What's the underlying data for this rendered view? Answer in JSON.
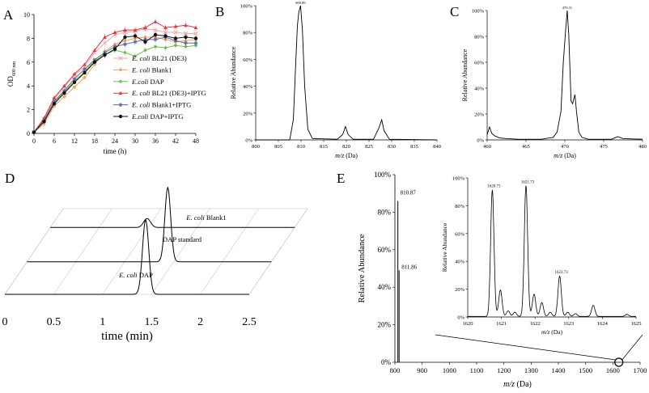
{
  "panels": {
    "A": {
      "letter": "A",
      "chart_data": {
        "type": "line",
        "xlabel": "time (h)",
        "ylabel_main": "OD",
        "ylabel_sub": "600 nm",
        "xlim": [
          0,
          48
        ],
        "ylim": [
          0,
          10
        ],
        "x_ticks": [
          "0",
          "6",
          "12",
          "18",
          "24",
          "30",
          "36",
          "42",
          "48"
        ],
        "y_ticks": [
          "0",
          "2",
          "4",
          "6",
          "8",
          "10"
        ],
        "x": [
          0,
          3,
          6,
          9,
          12,
          15,
          18,
          21,
          24,
          27,
          30,
          33,
          36,
          39,
          42,
          45,
          48
        ],
        "series": [
          {
            "name": "E. coli BL21 (DE3)",
            "italic": "E. coli",
            "rest": " BL21 (DE3)",
            "color": "#f2a7a7",
            "marker": "x",
            "values": [
              0.1,
              1.2,
              2.9,
              3.9,
              4.9,
              5.6,
              6.8,
              7.6,
              8.3,
              8.5,
              8.6,
              8.8,
              8.7,
              8.5,
              8.5,
              8.4,
              8.4
            ]
          },
          {
            "name": "E. coli Blank1",
            "italic": "E. coli",
            "rest": " Blank1",
            "color": "#f0a35a",
            "marker": "diamond",
            "values": [
              0.1,
              0.8,
              2.3,
              3.1,
              3.9,
              4.7,
              5.8,
              6.9,
              7.5,
              7.8,
              8.0,
              8.1,
              8.1,
              7.9,
              7.7,
              7.8,
              7.9
            ]
          },
          {
            "name": "E.coli DAP",
            "italic": "E.coli",
            "rest": " DAP",
            "color": "#6cbf4a",
            "marker": "circle",
            "values": [
              0.1,
              1.0,
              2.6,
              3.5,
              4.4,
              5.2,
              6.1,
              6.6,
              7.0,
              6.8,
              6.5,
              7.0,
              7.3,
              7.2,
              7.4,
              7.3,
              7.4
            ]
          },
          {
            "name": "E. coli BL21 (DE3)+IPTG",
            "italic": "E. coli",
            "rest": " BL21 (DE3)+IPTG",
            "color": "#e0393e",
            "marker": "triangle",
            "values": [
              0.1,
              1.3,
              3.0,
              4.0,
              5.0,
              5.8,
              7.0,
              8.1,
              8.5,
              8.7,
              8.7,
              8.9,
              9.4,
              8.9,
              9.0,
              9.1,
              8.9
            ]
          },
          {
            "name": "E. coli Blank1+IPTG",
            "italic": "E. coli",
            "rest": " Blank1+IPTG",
            "color": "#5c6aa8",
            "marker": "star",
            "values": [
              0.1,
              1.1,
              2.7,
              3.6,
              4.6,
              5.4,
              6.2,
              6.8,
              7.3,
              7.5,
              7.7,
              7.9,
              7.9,
              8.1,
              7.8,
              7.6,
              7.6
            ]
          },
          {
            "name": "E.coli DAP+IPTG",
            "italic": "E.coli",
            "rest": " DAP+IPTG",
            "color": "#111111",
            "marker": "dot",
            "values": [
              0.1,
              1.0,
              2.5,
              3.4,
              4.3,
              5.1,
              6.0,
              6.6,
              7.1,
              8.1,
              8.2,
              7.7,
              8.3,
              8.2,
              8.0,
              8.1,
              8.0
            ]
          }
        ]
      }
    },
    "B": {
      "letter": "B",
      "chart_data": {
        "type": "line",
        "xlabel_italic": "m/z",
        "xlabel_rest": " (Da)",
        "ylabel": "Relative Abundance",
        "xlim": [
          800,
          840
        ],
        "ylim": [
          0,
          100
        ],
        "x_ticks": [
          "800",
          "805",
          "810",
          "815",
          "820",
          "825",
          "830",
          "835",
          "840"
        ],
        "y_ticks": [
          "0%",
          "20%",
          "40%",
          "60%",
          "80%",
          "100%"
        ],
        "peak_label": "809.89",
        "x": [
          800,
          807.5,
          808.3,
          808.8,
          809.2,
          809.5,
          809.9,
          810.3,
          810.8,
          811.5,
          812.5,
          818,
          819.2,
          819.8,
          820.4,
          821.5,
          826,
          827.2,
          827.8,
          828.3,
          829.5,
          840
        ],
        "values": [
          0,
          0,
          15,
          55,
          85,
          95,
          100,
          82,
          40,
          8,
          1,
          0.5,
          4,
          10,
          4,
          0.5,
          0.5,
          9,
          15,
          7,
          0.5,
          0
        ]
      }
    },
    "C": {
      "letter": "C",
      "chart_data": {
        "type": "line",
        "xlabel_italic": "m/z",
        "xlabel_rest": " (Da)",
        "ylabel": "Relative Abundance",
        "xlim": [
          460,
          480
        ],
        "ylim": [
          0,
          100
        ],
        "x_ticks": [
          "460",
          "465",
          "470",
          "475",
          "480"
        ],
        "y_ticks": [
          "0%",
          "20%",
          "40%",
          "60%",
          "80%",
          "100%"
        ],
        "peak_label": "470.31",
        "x": [
          460,
          460.3,
          460.6,
          461,
          461.6,
          462.5,
          464,
          467,
          468.5,
          469,
          469.5,
          469.8,
          470.1,
          470.3,
          470.5,
          470.8,
          471,
          471.3,
          471.5,
          471.8,
          472.2,
          473,
          476,
          476.8,
          477.5,
          480
        ],
        "values": [
          4,
          10,
          5,
          3,
          1.5,
          1,
          0.5,
          0.5,
          2,
          6,
          22,
          60,
          85,
          100,
          82,
          30,
          28,
          35,
          22,
          6,
          2,
          0.5,
          0.5,
          2.5,
          1,
          0.5
        ]
      }
    },
    "D": {
      "letter": "D",
      "chart_data": {
        "type": "line",
        "xlabel": "time (min)",
        "xlim": [
          0,
          2.5
        ],
        "x_ticks": [
          "0",
          "0.5",
          "1",
          "1.5",
          "2",
          "2.5"
        ],
        "series": [
          {
            "name": "E. coli Blank1",
            "italic": "E. coli",
            "rest": " Blank1",
            "peaks": [
              {
                "t": 0.99,
                "h": 0.12,
                "w": 0.035
              }
            ]
          },
          {
            "name": "DAP standard",
            "italic": "",
            "rest": "DAP standard",
            "peaks": [
              {
                "t": 1.44,
                "h": 1.0,
                "w": 0.03
              }
            ]
          },
          {
            "name": "E. coli DAP",
            "italic": "E. coli",
            "rest": " DAP",
            "peaks": [
              {
                "t": 1.44,
                "h": 1.0,
                "w": 0.032
              }
            ]
          }
        ]
      }
    },
    "E": {
      "letter": "E",
      "chart_data": {
        "type": "bar",
        "xlabel_italic": "m/z",
        "xlabel_rest": " (Da)",
        "ylabel": "Relative Abundance",
        "xlim": [
          800,
          1700
        ],
        "ylim": [
          0,
          100
        ],
        "x_ticks": [
          "800",
          "900",
          "1000",
          "1100",
          "1200",
          "1300",
          "1400",
          "1500",
          "1600",
          "1700"
        ],
        "y_ticks": [
          "0%",
          "20%",
          "40%",
          "60%",
          "80%",
          "100%"
        ],
        "x": [
          810.87,
          811.86
        ],
        "values": [
          86,
          49
        ],
        "peak_labels": [
          "810.87",
          "811.86"
        ],
        "inset": {
          "type": "line",
          "xlabel_italic": "m/z",
          "xlabel_rest": " (Da)",
          "ylabel": "Relative Abundance",
          "xlim": [
            1620,
            1625
          ],
          "ylim": [
            0,
            100
          ],
          "x_ticks": [
            "1620",
            "1621",
            "1622",
            "1623",
            "1624",
            "1625"
          ],
          "y_ticks": [
            "0%",
            "20%",
            "40%",
            "60%",
            "80%",
            "100%"
          ],
          "peak_labels": [
            "1620.73",
            "1621.73",
            "1622.73"
          ],
          "peak_label_x": [
            1620.73,
            1621.73,
            1622.73
          ],
          "peaks": [
            {
              "x": 1620.73,
              "h": 91,
              "w": 0.05
            },
            {
              "x": 1620.97,
              "h": 19,
              "w": 0.05
            },
            {
              "x": 1621.2,
              "h": 4,
              "w": 0.05
            },
            {
              "x": 1621.4,
              "h": 3,
              "w": 0.05
            },
            {
              "x": 1621.73,
              "h": 94,
              "w": 0.05
            },
            {
              "x": 1621.97,
              "h": 16,
              "w": 0.05
            },
            {
              "x": 1622.2,
              "h": 10,
              "w": 0.05
            },
            {
              "x": 1622.45,
              "h": 3,
              "w": 0.05
            },
            {
              "x": 1622.73,
              "h": 29,
              "w": 0.05
            },
            {
              "x": 1622.97,
              "h": 3,
              "w": 0.05
            },
            {
              "x": 1623.2,
              "h": 2,
              "w": 0.05
            },
            {
              "x": 1623.73,
              "h": 8,
              "w": 0.05
            },
            {
              "x": 1624.73,
              "h": 1.5,
              "w": 0.05
            }
          ]
        }
      }
    }
  }
}
